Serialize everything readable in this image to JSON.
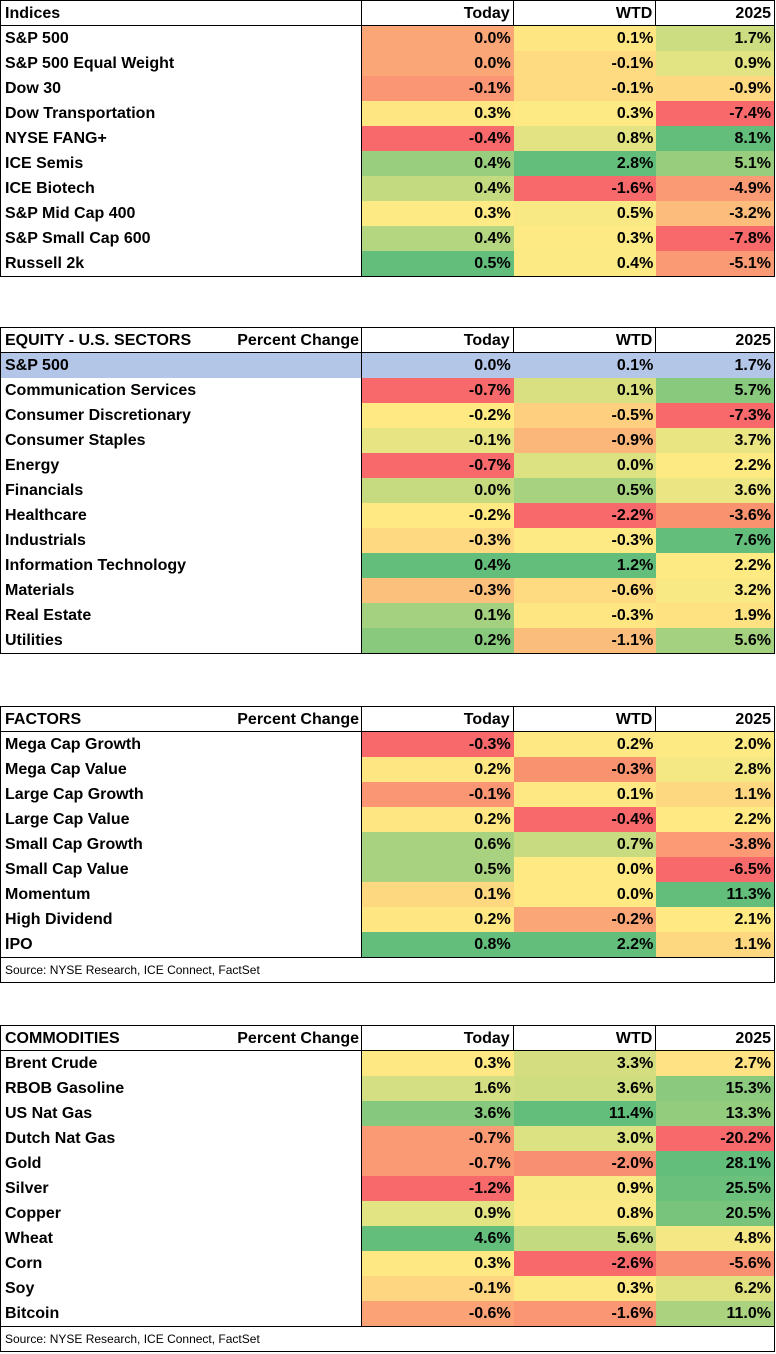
{
  "colors": {
    "green_strong": "#63be7b",
    "yellow": "#ffeb84",
    "red_strong": "#f8696b",
    "highlight": "#b4c6e7"
  },
  "columns": {
    "today": "Today",
    "wtd": "WTD",
    "ytd": "2025"
  },
  "indices": {
    "title": "Indices",
    "rows": [
      {
        "name": "S&P 500",
        "today": "0.0%",
        "wtd": "0.1%",
        "ytd": "1.7%",
        "c": [
          "#fba677",
          "#fee683",
          "#cbdc81"
        ]
      },
      {
        "name": "S&P 500 Equal Weight",
        "today": "0.0%",
        "wtd": "-0.1%",
        "ytd": "0.9%",
        "c": [
          "#fba677",
          "#fedb81",
          "#e2e383"
        ]
      },
      {
        "name": "Dow 30",
        "today": "-0.1%",
        "wtd": "-0.1%",
        "ytd": "-0.9%",
        "c": [
          "#fa9673",
          "#fedb81",
          "#fed880"
        ]
      },
      {
        "name": "Dow Transportation",
        "today": "0.3%",
        "wtd": "0.3%",
        "ytd": "-7.4%",
        "c": [
          "#fee783",
          "#fdea84",
          "#f8696b"
        ]
      },
      {
        "name": "NYSE FANG+",
        "today": "-0.4%",
        "wtd": "0.8%",
        "ytd": "8.1%",
        "c": [
          "#f8696b",
          "#e3e383",
          "#63be7b"
        ]
      },
      {
        "name": "ICE Semis",
        "today": "0.4%",
        "wtd": "2.8%",
        "ytd": "5.1%",
        "c": [
          "#9ace7f",
          "#63be7b",
          "#98cd7e"
        ]
      },
      {
        "name": "ICE Biotech",
        "today": "0.4%",
        "wtd": "-1.6%",
        "ytd": "-4.9%",
        "c": [
          "#c4da80",
          "#f8696b",
          "#fa9a74"
        ]
      },
      {
        "name": "S&P Mid Cap 400",
        "today": "0.3%",
        "wtd": "0.5%",
        "ytd": "-3.2%",
        "c": [
          "#fdea84",
          "#f8e984",
          "#fcbc7b"
        ]
      },
      {
        "name": "S&P Small Cap 600",
        "today": "0.4%",
        "wtd": "0.3%",
        "ytd": "-7.8%",
        "c": [
          "#b4d680",
          "#fdea84",
          "#f8696b"
        ]
      },
      {
        "name": "Russell 2k",
        "today": "0.5%",
        "wtd": "0.4%",
        "ytd": "-5.1%",
        "c": [
          "#63be7b",
          "#fceb84",
          "#fa9a74"
        ]
      }
    ]
  },
  "sectors": {
    "title": "EQUITY - U.S. SECTORS",
    "subtitle": "Percent Change",
    "rows": [
      {
        "name": "S&P 500",
        "today": "0.0%",
        "wtd": "0.1%",
        "ytd": "1.7%",
        "highlight": true
      },
      {
        "name": "Communication Services",
        "today": "-0.7%",
        "wtd": "0.1%",
        "ytd": "5.7%",
        "c": [
          "#f8696b",
          "#d8e082",
          "#88c97e"
        ]
      },
      {
        "name": "Consumer Discretionary",
        "today": "-0.2%",
        "wtd": "-0.5%",
        "ytd": "-7.3%",
        "c": [
          "#fee983",
          "#fecf7f",
          "#f8696b"
        ]
      },
      {
        "name": "Consumer Staples",
        "today": "-0.1%",
        "wtd": "-0.9%",
        "ytd": "3.7%",
        "c": [
          "#e7e483",
          "#fbb779",
          "#e9e583"
        ]
      },
      {
        "name": "Energy",
        "today": "-0.7%",
        "wtd": "0.0%",
        "ytd": "2.2%",
        "c": [
          "#f8696b",
          "#dce182",
          "#feea83"
        ]
      },
      {
        "name": "Financials",
        "today": "0.0%",
        "wtd": "0.5%",
        "ytd": "3.6%",
        "c": [
          "#c6da80",
          "#a7d27f",
          "#ebe683"
        ]
      },
      {
        "name": "Healthcare",
        "today": "-0.2%",
        "wtd": "-2.2%",
        "ytd": "-3.6%",
        "c": [
          "#fee983",
          "#f8696b",
          "#f9936f"
        ]
      },
      {
        "name": "Industrials",
        "today": "-0.3%",
        "wtd": "-0.3%",
        "ytd": "7.6%",
        "c": [
          "#fed981",
          "#fdea84",
          "#63be7b"
        ]
      },
      {
        "name": "Information Technology",
        "today": "0.4%",
        "wtd": "1.2%",
        "ytd": "2.2%",
        "c": [
          "#63be7b",
          "#63be7b",
          "#feea83"
        ]
      },
      {
        "name": "Materials",
        "today": "-0.3%",
        "wtd": "-0.6%",
        "ytd": "3.2%",
        "c": [
          "#fbc07c",
          "#fedb81",
          "#f9e984"
        ]
      },
      {
        "name": "Real Estate",
        "today": "0.1%",
        "wtd": "-0.3%",
        "ytd": "1.9%",
        "c": [
          "#a3d17f",
          "#fee683",
          "#fee282"
        ]
      },
      {
        "name": "Utilities",
        "today": "0.2%",
        "wtd": "-1.1%",
        "ytd": "5.6%",
        "c": [
          "#89c97e",
          "#fbbd7b",
          "#a4d17f"
        ]
      }
    ]
  },
  "factors": {
    "title": "FACTORS",
    "subtitle": "Percent Change",
    "rows": [
      {
        "name": "Mega Cap Growth",
        "today": "-0.3%",
        "wtd": "0.2%",
        "ytd": "2.0%",
        "c": [
          "#f8696b",
          "#fde883",
          "#feea83"
        ]
      },
      {
        "name": "Mega Cap Value",
        "today": "0.2%",
        "wtd": "-0.3%",
        "ytd": "2.8%",
        "c": [
          "#fee783",
          "#f9936f",
          "#f4e884"
        ]
      },
      {
        "name": "Large Cap Growth",
        "today": "-0.1%",
        "wtd": "0.1%",
        "ytd": "1.1%",
        "c": [
          "#fa9673",
          "#fde883",
          "#fed880"
        ]
      },
      {
        "name": "Large Cap Value",
        "today": "0.2%",
        "wtd": "-0.4%",
        "ytd": "2.2%",
        "c": [
          "#fee783",
          "#f8696b",
          "#fee983"
        ]
      },
      {
        "name": "Small Cap Growth",
        "today": "0.6%",
        "wtd": "0.7%",
        "ytd": "-3.8%",
        "c": [
          "#a8d27f",
          "#c8db80",
          "#fb9a74"
        ]
      },
      {
        "name": "Small Cap Value",
        "today": "0.5%",
        "wtd": "0.0%",
        "ytd": "-6.5%",
        "c": [
          "#a8d27f",
          "#fee983",
          "#f8696b"
        ]
      },
      {
        "name": "Momentum",
        "today": "0.1%",
        "wtd": "0.0%",
        "ytd": "11.3%",
        "c": [
          "#fed880",
          "#fee983",
          "#63be7b"
        ]
      },
      {
        "name": "High Dividend",
        "today": "0.2%",
        "wtd": "-0.2%",
        "ytd": "2.1%",
        "c": [
          "#fee783",
          "#fba677",
          "#fee983"
        ]
      },
      {
        "name": "IPO",
        "today": "0.8%",
        "wtd": "2.2%",
        "ytd": "1.1%",
        "c": [
          "#63be7b",
          "#63be7b",
          "#fed880"
        ]
      }
    ],
    "source": "Source: NYSE Research, ICE Connect, FactSet"
  },
  "commodities": {
    "title": "COMMODITIES",
    "subtitle": "Percent Change",
    "rows": [
      {
        "name": "Brent Crude",
        "today": "0.3%",
        "wtd": "3.3%",
        "ytd": "2.7%",
        "c": [
          "#fde883",
          "#d4de81",
          "#fee283"
        ]
      },
      {
        "name": "RBOB Gasoline",
        "today": "1.6%",
        "wtd": "3.6%",
        "ytd": "15.3%",
        "c": [
          "#d3df82",
          "#cfdd81",
          "#8bca7e"
        ]
      },
      {
        "name": "US Nat Gas",
        "today": "3.6%",
        "wtd": "11.4%",
        "ytd": "13.3%",
        "c": [
          "#86c87d",
          "#63be7b",
          "#94cc7e"
        ]
      },
      {
        "name": "Dutch Nat Gas",
        "today": "-0.7%",
        "wtd": "3.0%",
        "ytd": "-20.2%",
        "c": [
          "#fa9a74",
          "#dce182",
          "#f8696b"
        ]
      },
      {
        "name": "Gold",
        "today": "-0.7%",
        "wtd": "-2.0%",
        "ytd": "28.1%",
        "c": [
          "#fa9a74",
          "#f98f72",
          "#63be7b"
        ]
      },
      {
        "name": "Silver",
        "today": "-1.2%",
        "wtd": "0.9%",
        "ytd": "25.5%",
        "c": [
          "#f8696b",
          "#f9e984",
          "#6bc07c"
        ]
      },
      {
        "name": "Copper",
        "today": "0.9%",
        "wtd": "0.8%",
        "ytd": "20.5%",
        "c": [
          "#e2e383",
          "#fae984",
          "#78c47d"
        ]
      },
      {
        "name": "Wheat",
        "today": "4.6%",
        "wtd": "5.6%",
        "ytd": "4.8%",
        "c": [
          "#63be7b",
          "#c4da80",
          "#f5e884"
        ]
      },
      {
        "name": "Corn",
        "today": "0.3%",
        "wtd": "-2.6%",
        "ytd": "-5.6%",
        "c": [
          "#fde883",
          "#f8696b",
          "#fa9072"
        ]
      },
      {
        "name": "Soy",
        "today": "-0.1%",
        "wtd": "0.3%",
        "ytd": "6.2%",
        "c": [
          "#fed580",
          "#fde983",
          "#e0e282"
        ]
      },
      {
        "name": "Bitcoin",
        "today": "-0.6%",
        "wtd": "-1.6%",
        "ytd": "11.0%",
        "c": [
          "#fba276",
          "#fa9673",
          "#aad27f"
        ]
      }
    ],
    "source": "Source: NYSE Research, ICE Connect, FactSet"
  }
}
